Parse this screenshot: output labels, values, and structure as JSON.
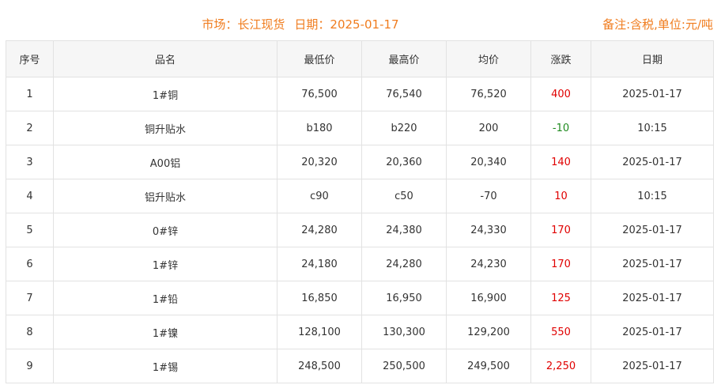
{
  "header": {
    "market": "市场：长江现货",
    "date": "日期：2025-01-17",
    "note": "备注:含税,单位:元/吨"
  },
  "colors": {
    "up": "#e00000",
    "down": "#1f8a1f",
    "accent": "#f07c1e"
  },
  "columns": [
    "序号",
    "品名",
    "最低价",
    "最高价",
    "均价",
    "涨跌",
    "日期"
  ],
  "rows": [
    [
      "1",
      "1#铜",
      "76,500",
      "76,540",
      "76,520",
      "400",
      "2025-01-17"
    ],
    [
      "2",
      "铜升贴水",
      "b180",
      "b220",
      "200",
      "-10",
      "10:15"
    ],
    [
      "3",
      "A00铝",
      "20,320",
      "20,360",
      "20,340",
      "140",
      "2025-01-17"
    ],
    [
      "4",
      "铝升贴水",
      "c90",
      "c50",
      "-70",
      "10",
      "10:15"
    ],
    [
      "5",
      "0#锌",
      "24,280",
      "24,380",
      "24,330",
      "170",
      "2025-01-17"
    ],
    [
      "6",
      "1#锌",
      "24,180",
      "24,280",
      "24,230",
      "170",
      "2025-01-17"
    ],
    [
      "7",
      "1#铅",
      "16,850",
      "16,950",
      "16,900",
      "125",
      "2025-01-17"
    ],
    [
      "8",
      "1#镍",
      "128,100",
      "130,300",
      "129,200",
      "550",
      "2025-01-17"
    ],
    [
      "9",
      "1#锡",
      "248,500",
      "250,500",
      "249,500",
      "2,250",
      "2025-01-17"
    ]
  ]
}
